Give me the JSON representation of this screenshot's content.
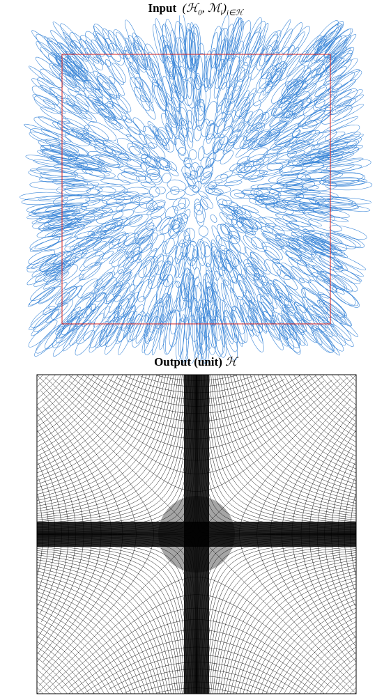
{
  "panels": [
    {
      "title": "Input",
      "math_parts": [
        "(ℋ",
        "0",
        ", ℳ",
        "i",
        ")",
        "i∈ℋ"
      ]
    },
    {
      "title": "Output (unit)",
      "math_parts": [
        "ℋ"
      ]
    }
  ]
}
